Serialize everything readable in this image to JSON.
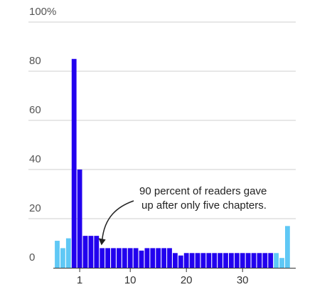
{
  "colors": {
    "primary": "#2200ee",
    "secondary": "#5fc8f5",
    "grid": "#cfcfcf",
    "axis": "#333333"
  },
  "chart_data": {
    "type": "bar",
    "title": "",
    "xlabel": "",
    "ylabel": "",
    "ylim": [
      0,
      100
    ],
    "y_ticks": [
      0,
      20,
      40,
      60,
      80,
      100
    ],
    "y_tick_labels": [
      "0",
      "20",
      "40",
      "60",
      "80",
      "100%"
    ],
    "x_ticks": [
      1,
      10,
      20,
      30
    ],
    "x_tick_labels": [
      "1",
      "10",
      "20",
      "30"
    ],
    "grid": true,
    "categories": [
      -3,
      -2,
      -1,
      0,
      1,
      2,
      3,
      4,
      5,
      6,
      7,
      8,
      9,
      10,
      11,
      12,
      13,
      14,
      15,
      16,
      17,
      18,
      19,
      20,
      21,
      22,
      23,
      24,
      25,
      26,
      27,
      28,
      29,
      30,
      31,
      32,
      33,
      34,
      35,
      36,
      37,
      38
    ],
    "series": [
      {
        "color_key": "secondary",
        "values": [
          11,
          8,
          12,
          null,
          null,
          null,
          null,
          null,
          null,
          null,
          null,
          null,
          null,
          null,
          null,
          null,
          null,
          null,
          null,
          null,
          null,
          null,
          null,
          null,
          null,
          null,
          null,
          null,
          null,
          null,
          null,
          null,
          null,
          null,
          null,
          null,
          null,
          null,
          null,
          6,
          4,
          17
        ]
      },
      {
        "color_key": "primary",
        "values": [
          null,
          null,
          null,
          85,
          40,
          13,
          13,
          13,
          8,
          8,
          8,
          8,
          8,
          8,
          8,
          7,
          8,
          8,
          8,
          8,
          8,
          6,
          5,
          6,
          6,
          6,
          6,
          6,
          6,
          6,
          6,
          6,
          6,
          6,
          6,
          6,
          6,
          6,
          6,
          null,
          null,
          null
        ]
      }
    ],
    "annotation": {
      "text_lines": [
        "90 percent of readers gave",
        "up after only five chapters."
      ],
      "points_to": 5
    }
  }
}
